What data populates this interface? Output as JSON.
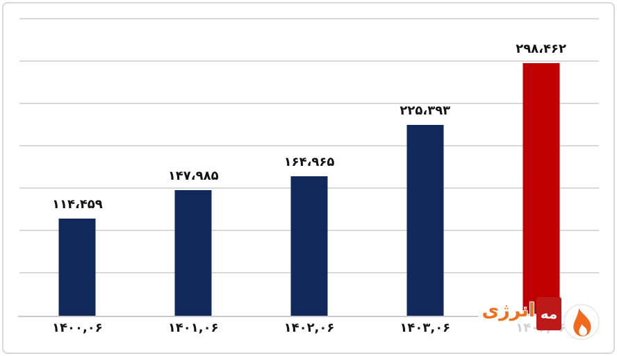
{
  "chart_data": {
    "type": "bar",
    "title": "",
    "xlabel": "",
    "ylabel": "",
    "categories": [
      "۱۴۰۰,۰۶",
      "۱۴۰۱,۰۶",
      "۱۴۰۲,۰۶",
      "۱۴۰۳,۰۶",
      "۱۴۰۴,۰۶"
    ],
    "values": [
      114459,
      147985,
      164965,
      225393,
      298462
    ],
    "value_labels": [
      "۱۱۴،۴۵۹",
      "۱۴۷،۹۸۵",
      "۱۶۴،۹۶۵",
      "۲۲۵،۳۹۳",
      "۲۹۸،۴۶۲"
    ],
    "series_colors": [
      "#10295A",
      "#10295A",
      "#10295A",
      "#10295A",
      "#C00000"
    ],
    "ylim": [
      0,
      350000
    ],
    "gridline_step": 50000,
    "grid": true,
    "legend": false,
    "gridline_color": "#D9D9D9",
    "axis_color": "#C9C9C9"
  },
  "watermark": {
    "brand_word_right": "مه",
    "brand_word_left": "انرژی",
    "orange": "#F0701C",
    "mark_red": "#BE1919"
  },
  "frame": {
    "border_color": "#D8D8D8",
    "background": "#FFFFFF"
  }
}
